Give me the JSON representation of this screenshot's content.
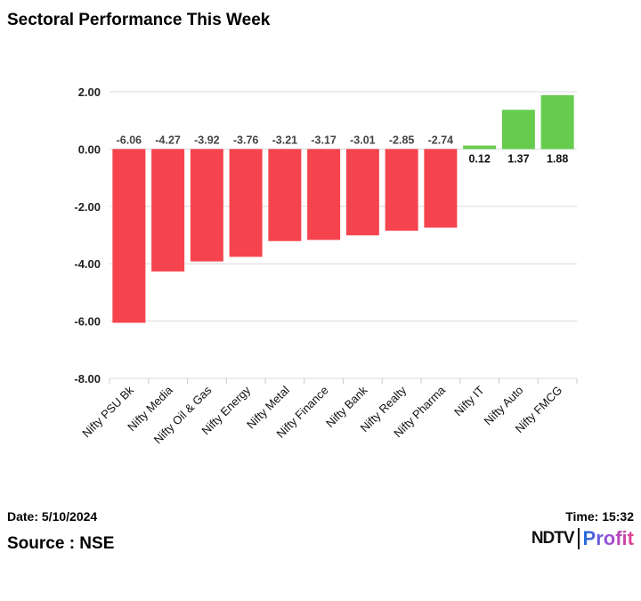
{
  "title": "Sectoral Performance This Week",
  "footer": {
    "date": "Date: 5/10/2024",
    "time": "Time: 15:32",
    "source": "Source : NSE",
    "logo": "NDTV Profit",
    "logo_parts": [
      "NDTV",
      "Profit"
    ]
  },
  "chart_data": {
    "type": "bar",
    "title": "Sectoral Performance This Week",
    "categories": [
      "Nifty PSU Bk",
      "Nifty Media",
      "Nifty Oil & Gas",
      "Nifty Energy",
      "Nifty Metal",
      "Nifty Finance",
      "Nifty Bank",
      "Nifty Realty",
      "Nifty Pharma",
      "Nifty IT",
      "Nifty Auto",
      "Nifty FMCG"
    ],
    "values": [
      -6.06,
      -4.27,
      -3.92,
      -3.76,
      -3.21,
      -3.17,
      -3.01,
      -2.85,
      -2.74,
      0.12,
      1.37,
      1.88
    ],
    "ylim": [
      -8,
      2
    ],
    "yticks": [
      "2.00",
      "0.00",
      "-2.00",
      "-4.00",
      "-6.00",
      "-8.00"
    ],
    "grid": true,
    "colors": {
      "negative": "#f5444e",
      "positive": "#66cc4e"
    },
    "xlabel": "",
    "ylabel": ""
  }
}
